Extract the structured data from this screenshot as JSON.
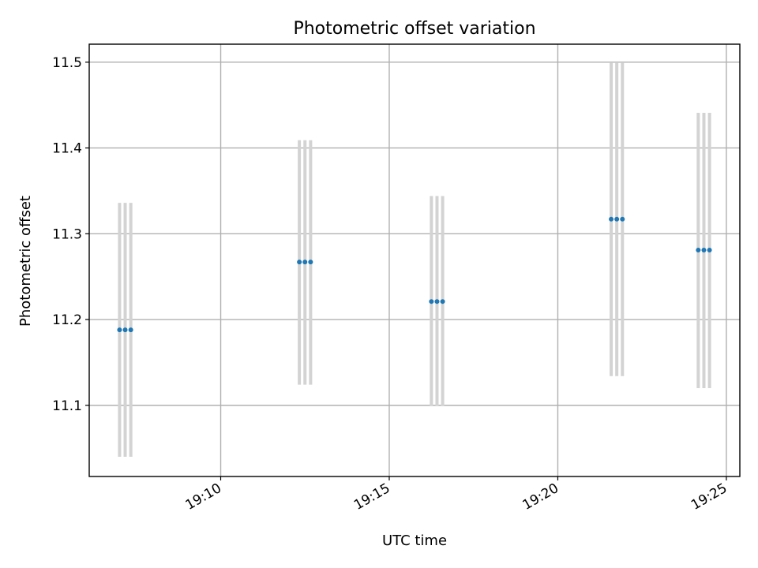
{
  "chart_data": {
    "type": "scatter",
    "title": "Photometric offset variation",
    "xlabel": "UTC time",
    "ylabel": "Photometric offset",
    "x_ticks": [
      "19:10",
      "19:15",
      "19:20",
      "19:25"
    ],
    "y_ticks": [
      "11.1",
      "11.2",
      "11.3",
      "11.4",
      "11.5"
    ],
    "xlim": [
      "19:06:06",
      "19:25:24"
    ],
    "ylim": [
      11.017,
      11.521
    ],
    "grid": true,
    "marker_color": "#1f77b4",
    "errorbar_color": "#d3d3d3",
    "series": [
      {
        "points": [
          {
            "x": "19:07:00",
            "y": 11.188,
            "yerr": [
              11.04,
              11.336
            ]
          },
          {
            "x": "19:07:10",
            "y": 11.188,
            "yerr": [
              11.04,
              11.336
            ]
          },
          {
            "x": "19:07:20",
            "y": 11.188,
            "yerr": [
              11.04,
              11.336
            ]
          },
          {
            "x": "19:12:20",
            "y": 11.267,
            "yerr": [
              11.124,
              11.409
            ]
          },
          {
            "x": "19:12:30",
            "y": 11.267,
            "yerr": [
              11.124,
              11.409
            ]
          },
          {
            "x": "19:12:40",
            "y": 11.267,
            "yerr": [
              11.124,
              11.409
            ]
          },
          {
            "x": "19:16:15",
            "y": 11.221,
            "yerr": [
              11.099,
              11.344
            ]
          },
          {
            "x": "19:16:25",
            "y": 11.221,
            "yerr": [
              11.099,
              11.344
            ]
          },
          {
            "x": "19:16:35",
            "y": 11.221,
            "yerr": [
              11.099,
              11.344
            ]
          },
          {
            "x": "19:21:35",
            "y": 11.317,
            "yerr": [
              11.134,
              11.499
            ]
          },
          {
            "x": "19:21:45",
            "y": 11.317,
            "yerr": [
              11.134,
              11.499
            ]
          },
          {
            "x": "19:21:55",
            "y": 11.317,
            "yerr": [
              11.134,
              11.499
            ]
          },
          {
            "x": "19:24:10",
            "y": 11.281,
            "yerr": [
              11.12,
              11.441
            ]
          },
          {
            "x": "19:24:20",
            "y": 11.281,
            "yerr": [
              11.12,
              11.441
            ]
          },
          {
            "x": "19:24:30",
            "y": 11.281,
            "yerr": [
              11.12,
              11.441
            ]
          }
        ]
      }
    ]
  }
}
